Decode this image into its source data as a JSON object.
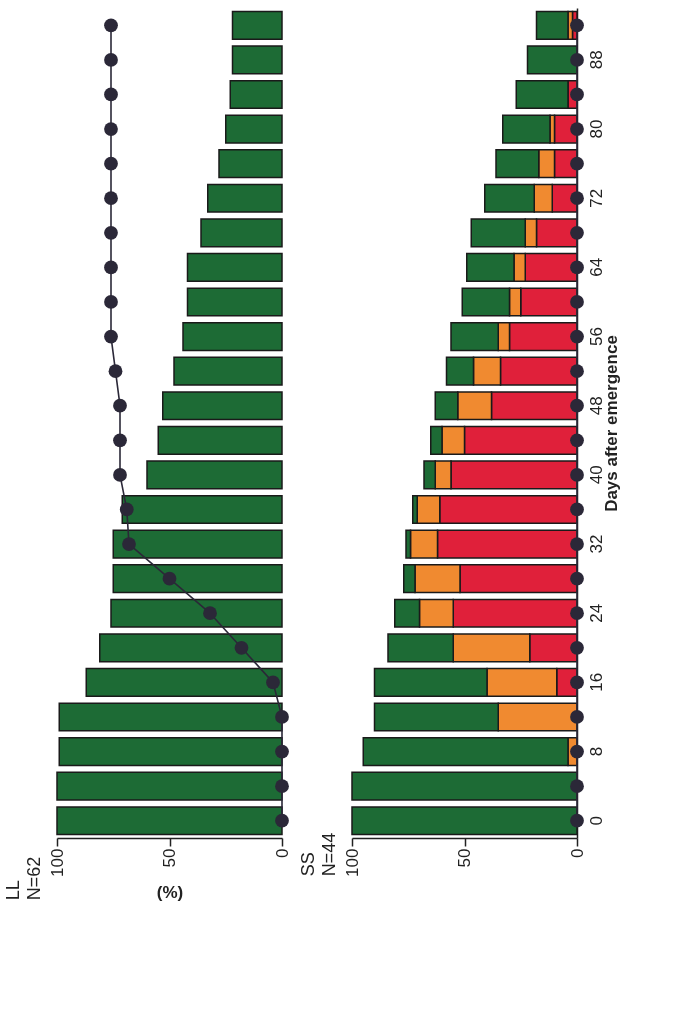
{
  "chart_data": [
    {
      "type": "bar",
      "orientation": "horizontal",
      "title": "LL",
      "subtitle": "N=62",
      "xlabel": "(%)",
      "categories": [
        null,
        "88",
        null,
        "80",
        null,
        "72",
        null,
        "64",
        null,
        "56",
        null,
        "48",
        null,
        "40",
        null,
        "32",
        null,
        "24",
        null,
        "16",
        null,
        "8",
        null,
        "0"
      ],
      "xlim": [
        100,
        0
      ],
      "xticks": [
        0,
        50,
        100
      ],
      "tick_labels": "x",
      "grid": false,
      "marker": "circle",
      "series": [
        {
          "color": "#1d6b35",
          "values": [
            22,
            22,
            23,
            25,
            28,
            33,
            36,
            42,
            42,
            44,
            48,
            53,
            55,
            60,
            71,
            75,
            75,
            76,
            81,
            87,
            99,
            99,
            100,
            100
          ]
        },
        {
          "type": "line",
          "color": "#2b2838",
          "values": [
            76,
            76,
            76,
            76,
            76,
            76,
            76,
            76,
            76,
            76,
            74,
            72,
            72,
            72,
            69,
            68,
            50,
            32,
            18,
            4,
            0,
            0,
            0,
            0
          ]
        }
      ]
    },
    {
      "type": "bar",
      "orientation": "horizontal",
      "stacked": true,
      "title": "SS",
      "subtitle": "N=44",
      "ylabel": "Days after emergence",
      "categories": [
        null,
        "88",
        null,
        "80",
        null,
        "72",
        null,
        "64",
        null,
        "56",
        null,
        "48",
        null,
        "40",
        null,
        "32",
        null,
        "24",
        null,
        "16",
        null,
        "8",
        null,
        "0"
      ],
      "xlim": [
        100,
        0
      ],
      "xticks": [
        0,
        50,
        100
      ],
      "grid": false,
      "marker": "circle",
      "series": [
        {
          "color": "#e0203a",
          "values": [
            2,
            0,
            4,
            10,
            10,
            11,
            18,
            23,
            25,
            30,
            34,
            38,
            50,
            56,
            61,
            62,
            52,
            55,
            21,
            9,
            0,
            0,
            0,
            0
          ]
        },
        {
          "color": "#f08a30",
          "values": [
            2,
            0,
            0,
            2,
            7,
            8,
            5,
            5,
            5,
            5,
            12,
            15,
            10,
            7,
            10,
            12,
            20,
            15,
            34,
            31,
            35,
            4,
            0,
            0
          ]
        },
        {
          "color": "#1d6b35",
          "values": [
            14,
            22,
            23,
            21,
            19,
            22,
            24,
            21,
            21,
            21,
            12,
            10,
            5,
            5,
            2,
            2,
            5,
            11,
            29,
            50,
            55,
            91,
            100,
            100
          ]
        },
        {
          "type": "line",
          "color": "#2b2838",
          "values": [
            0,
            0,
            0,
            0,
            0,
            0,
            0,
            0,
            0,
            0,
            0,
            0,
            0,
            0,
            0,
            0,
            0,
            0,
            0,
            0,
            0,
            0,
            0,
            0
          ]
        }
      ]
    }
  ]
}
